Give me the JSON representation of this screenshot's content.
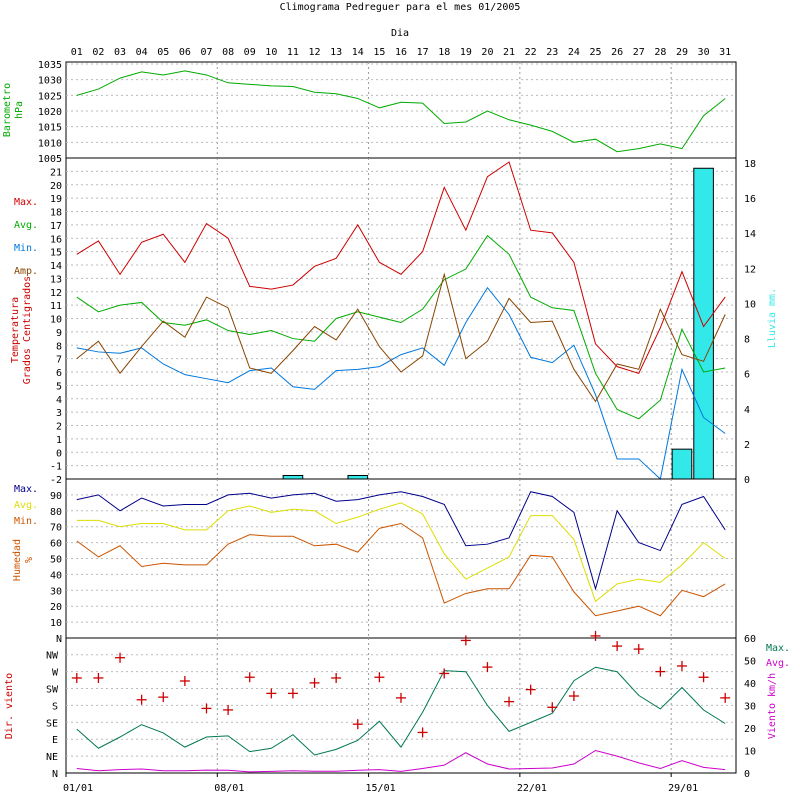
{
  "title": "Climograma Pedreguer para el mes 01/2005",
  "top_axis_label": "Dia",
  "days": [
    "01",
    "02",
    "03",
    "04",
    "05",
    "06",
    "07",
    "08",
    "09",
    "10",
    "11",
    "12",
    "13",
    "14",
    "15",
    "16",
    "17",
    "18",
    "19",
    "20",
    "21",
    "22",
    "23",
    "24",
    "25",
    "26",
    "27",
    "28",
    "29",
    "30",
    "31"
  ],
  "bottom_dates": [
    "01/01",
    "08/01",
    "15/01",
    "22/01",
    "29/01"
  ],
  "colors": {
    "red": "#cc0000",
    "green": "#00aa00",
    "blue": "#0077dd",
    "brown": "#884400",
    "navy": "#000088",
    "yellow": "#dddd00",
    "orange": "#cc5500",
    "teal": "#007755",
    "magenta": "#cc00cc",
    "cyan": "#33e8e8",
    "text": "#000000"
  },
  "chart_data": [
    {
      "type": "line",
      "ylabel": [
        "Barometro",
        "hPa"
      ],
      "ylim": [
        1005,
        1035
      ],
      "yticks": [
        1005,
        1010,
        1015,
        1020,
        1025,
        1030,
        1035
      ],
      "grid": true,
      "series": [
        {
          "values": [
            1025,
            1027,
            1030.5,
            1032.5,
            1031.5,
            1032.8,
            1031.5,
            1029,
            1028.5,
            1028,
            1027.8,
            1026,
            1025.5,
            1024,
            1021,
            1022.8,
            1022.5,
            1016,
            1016.5,
            1020,
            1017.2,
            1015.5,
            1013.5,
            1010,
            1011,
            1007,
            1008,
            1009.5,
            1008,
            1018.5,
            1024
          ]
        }
      ]
    },
    {
      "type": "line+bar",
      "ylabel": [
        "Temperatura",
        "Grados Centigrados"
      ],
      "y2label": "Lluvia mm.",
      "ylim": [
        -2,
        22
      ],
      "yticks": [
        -2,
        -1,
        0,
        1,
        2,
        3,
        4,
        5,
        6,
        7,
        8,
        9,
        10,
        11,
        12,
        13,
        14,
        15,
        16,
        17,
        18,
        19,
        20,
        21
      ],
      "y2lim": [
        0,
        18
      ],
      "y2ticks": [
        0,
        2,
        4,
        6,
        8,
        10,
        12,
        14,
        16,
        18
      ],
      "grid": true,
      "legend": [
        "Max.",
        "Avg.",
        "Min.",
        "Amp."
      ],
      "series": [
        {
          "name": "Max.",
          "values": [
            14.8,
            15.8,
            13.3,
            15.7,
            16.3,
            14.2,
            17.1,
            16,
            12.4,
            12.2,
            12.5,
            13.9,
            14.5,
            17,
            14.2,
            13.3,
            15,
            19.8,
            16.6,
            20.6,
            21.7,
            16.6,
            16.4,
            14.2,
            8.1,
            6.4,
            5.9,
            9.3,
            13.5,
            9.4,
            11.6
          ]
        },
        {
          "name": "Avg.",
          "values": [
            11.6,
            10.5,
            11,
            11.2,
            9.7,
            9.5,
            9.9,
            9.1,
            8.8,
            9.1,
            8.5,
            8.3,
            10,
            10.5,
            10.1,
            9.7,
            10.7,
            12.9,
            13.7,
            16.2,
            14.8,
            11.6,
            10.8,
            10.6,
            5.9,
            3.2,
            2.5,
            3.9,
            9.2,
            6,
            6.3
          ]
        },
        {
          "name": "Min.",
          "values": [
            7.8,
            7.5,
            7.4,
            7.8,
            6.6,
            5.8,
            5.5,
            5.2,
            6.1,
            6.3,
            4.9,
            4.7,
            6.1,
            6.2,
            6.4,
            7.3,
            7.8,
            6.5,
            9.7,
            12.3,
            10.3,
            7.1,
            6.7,
            8,
            4.3,
            -0.5,
            -0.5,
            -2,
            6.2,
            2.6,
            1.4
          ]
        },
        {
          "name": "Amp.",
          "values": [
            7,
            8.3,
            5.9,
            7.9,
            9.8,
            8.6,
            11.6,
            10.8,
            6.3,
            5.9,
            7.6,
            9.4,
            8.4,
            10.7,
            7.9,
            6,
            7.2,
            13.3,
            7,
            8.3,
            11.5,
            9.7,
            9.8,
            6.2,
            3.8,
            6.6,
            6.2,
            10.7,
            7.3,
            6.8,
            10.3
          ]
        }
      ],
      "rain": [
        0,
        0,
        0,
        0,
        0,
        0,
        0,
        0,
        0,
        0,
        0.2,
        0,
        0,
        0.2,
        0,
        0,
        0,
        0,
        0,
        0,
        0,
        0,
        0,
        0,
        0,
        0,
        0,
        0,
        1.7,
        17.7,
        0
      ]
    },
    {
      "type": "line",
      "ylabel": [
        "Humedad",
        "%"
      ],
      "ylim": [
        0,
        100
      ],
      "yticks": [
        10,
        20,
        30,
        40,
        50,
        60,
        70,
        80,
        90
      ],
      "y0_label": "N",
      "grid": true,
      "legend": [
        "Max.",
        "Avg.",
        "Min."
      ],
      "series": [
        {
          "name": "Max.",
          "values": [
            87,
            90,
            80,
            88,
            83,
            84,
            84,
            90,
            91,
            88,
            90,
            91,
            86,
            87,
            90,
            92,
            89,
            84,
            58,
            59,
            63,
            92,
            89,
            79,
            31,
            80,
            60,
            55,
            84,
            89,
            68
          ]
        },
        {
          "name": "Avg.",
          "values": [
            74,
            74,
            70,
            72,
            72,
            68,
            68,
            80,
            83,
            79,
            81,
            80,
            72,
            76,
            81,
            85,
            78,
            53,
            37,
            44,
            51,
            77,
            77,
            62,
            23,
            34,
            37,
            35,
            46,
            60,
            50
          ]
        },
        {
          "name": "Min.",
          "values": [
            61,
            51,
            58,
            45,
            47,
            46,
            46,
            59,
            65,
            64,
            64,
            58,
            59,
            54,
            69,
            72,
            63,
            22,
            28,
            31,
            31,
            52,
            51,
            29,
            14,
            17,
            20,
            14,
            30,
            26,
            34
          ]
        }
      ]
    },
    {
      "type": "scatter+line",
      "ylabel": "Dir. viento",
      "y2label": "Viento km/h",
      "ylim_dir": [
        0,
        360
      ],
      "yticks_dir": [
        "N",
        "NE",
        "E",
        "SE",
        "S",
        "SW",
        "W",
        "NW"
      ],
      "y2lim": [
        0,
        60
      ],
      "y2ticks": [
        0,
        10,
        20,
        30,
        40,
        50,
        60
      ],
      "grid": true,
      "legend": [
        "Max.",
        "Avg."
      ],
      "direction_deg": [
        253,
        253,
        307,
        195,
        202,
        245,
        172,
        168,
        255,
        212,
        212,
        240,
        253,
        130,
        255,
        200,
        108,
        265,
        353,
        282,
        190,
        222,
        175,
        205,
        365,
        338,
        330,
        270,
        285,
        255,
        200
      ],
      "series": [
        {
          "name": "Max.",
          "values": [
            19.5,
            11,
            16,
            21.5,
            17.8,
            11.5,
            16,
            16.5,
            9.5,
            11,
            17,
            8,
            10.5,
            14.5,
            23,
            11.5,
            27,
            45.5,
            45,
            30,
            18.5,
            22.5,
            26.5,
            41,
            47,
            45,
            34.5,
            28.5,
            38,
            28,
            22
          ]
        },
        {
          "name": "Avg.",
          "values": [
            2,
            1,
            1.5,
            1.8,
            1,
            1,
            1.3,
            1.2,
            0.5,
            0.7,
            1,
            0.8,
            0.8,
            1.2,
            1.5,
            0.7,
            2,
            3.5,
            9,
            4,
            1.8,
            2,
            2.2,
            4,
            10,
            7.5,
            4.5,
            2,
            5.5,
            2.5,
            1.5
          ]
        }
      ]
    }
  ]
}
